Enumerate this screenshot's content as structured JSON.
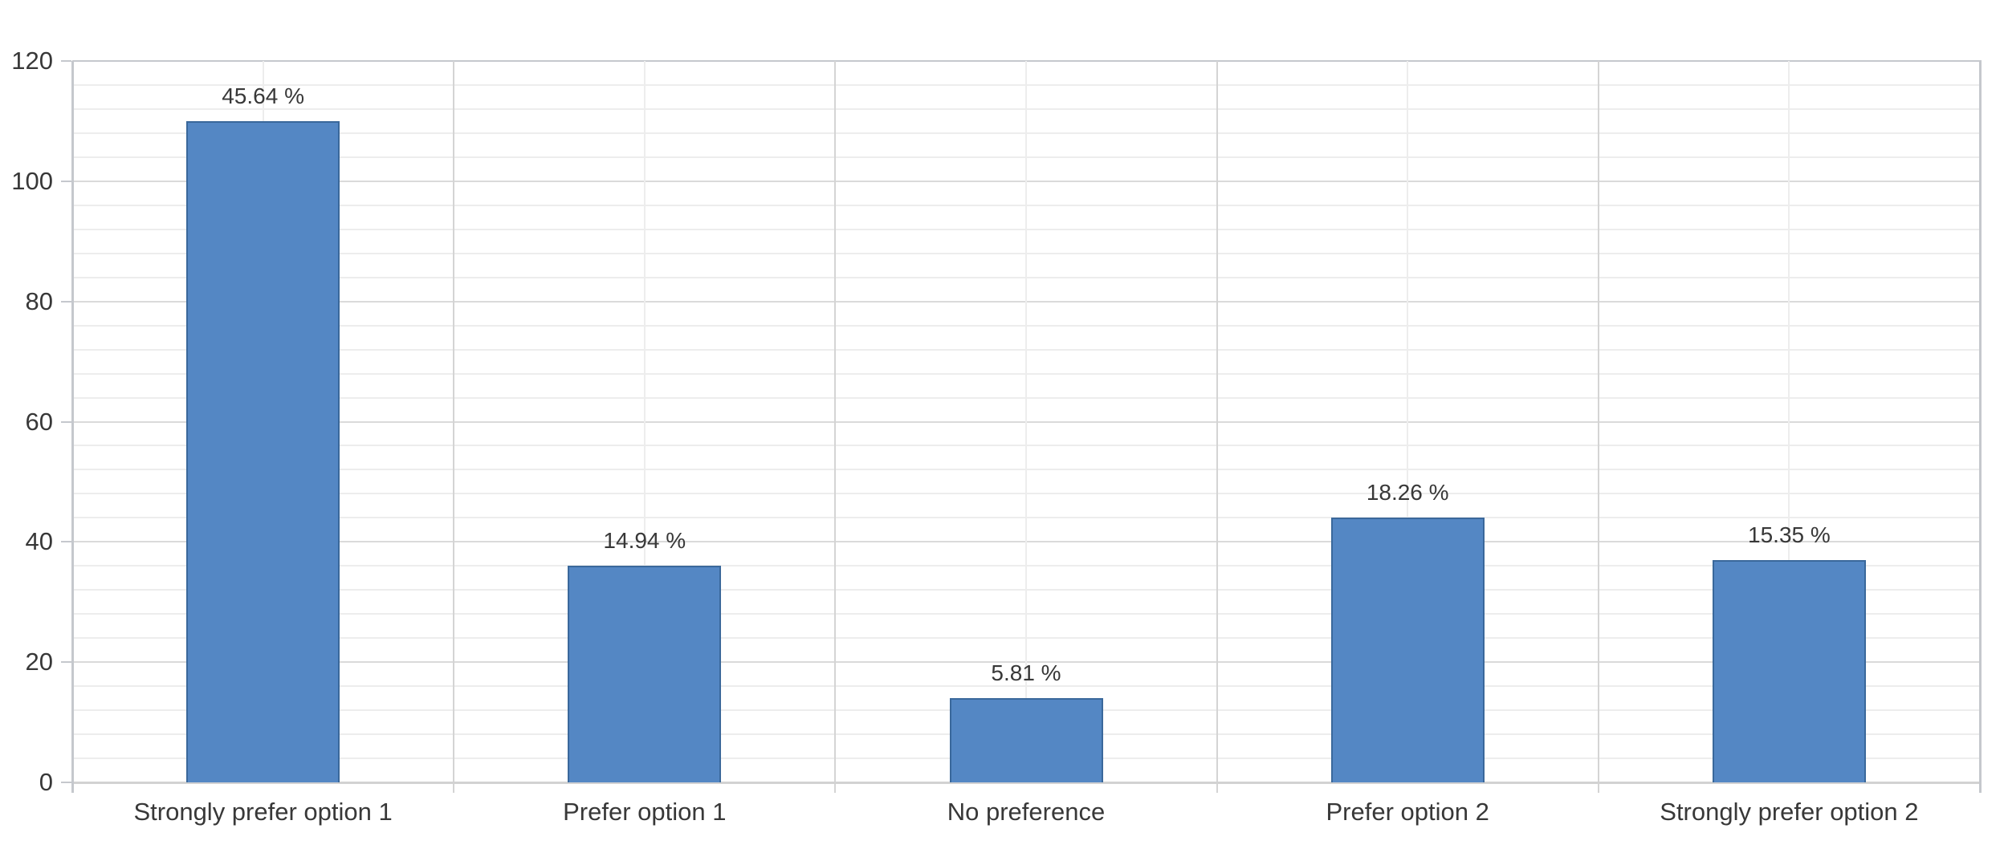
{
  "chart_data": {
    "type": "bar",
    "title": "",
    "xlabel": "",
    "ylabel": "",
    "categories": [
      "Strongly prefer option 1",
      "Prefer option 1",
      "No preference",
      "Prefer option 2",
      "Strongly prefer option 2"
    ],
    "values": [
      110,
      36,
      14,
      44,
      37
    ],
    "bar_labels": [
      "45.64 %",
      "14.94 %",
      "5.81 %",
      "18.26 %",
      "15.35 %"
    ],
    "ylim": [
      0,
      120
    ],
    "ytick_step": 20,
    "yminor_step": 4,
    "ytick_labels": [
      "0",
      "20",
      "40",
      "60",
      "80",
      "100",
      "120"
    ],
    "grid": "horizontal major+minor; vertical major at category boundaries, minor at category centers",
    "legend": "none",
    "colors": {
      "bar_fill": "#5487c4",
      "bar_border": "#3a689b",
      "grid_major": "#dadada",
      "grid_major_v": "#d4d4d4",
      "grid_minor": "#ededed",
      "axis_line": "#c5c8cd",
      "baseline": "#d2d2d2",
      "text": "#383838"
    }
  }
}
